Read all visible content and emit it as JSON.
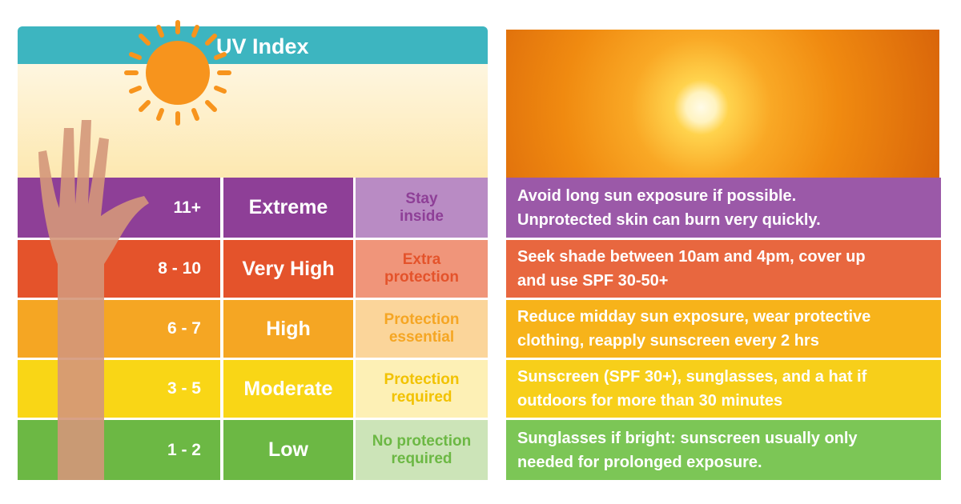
{
  "title": "UV Index",
  "levels": [
    {
      "range": "11+",
      "level": "Extreme",
      "short": [
        "Stay",
        "inside"
      ],
      "long": [
        "Avoid long sun exposure if possible.",
        "Unprotected skin can burn very quickly."
      ]
    },
    {
      "range": "8 - 10",
      "level": "Very High",
      "short": [
        "Extra",
        "protection"
      ],
      "long": [
        "Seek shade between 10am and 4pm, cover up",
        "and use SPF 30-50+"
      ]
    },
    {
      "range": "6 - 7",
      "level": "High",
      "short": [
        "Protection",
        "essential"
      ],
      "long": [
        "Reduce midday sun exposure, wear protective",
        "clothing, reapply sunscreen every 2 hrs"
      ]
    },
    {
      "range": "3 - 5",
      "level": "Moderate",
      "short": [
        "Protection",
        "required"
      ],
      "long": [
        "Sunscreen (SPF 30+), sunglasses, and a hat if",
        "outdoors for more than 30 minutes"
      ]
    },
    {
      "range": "1 - 2",
      "level": "Low",
      "short": [
        "No protection",
        "required"
      ],
      "long": [
        "Sunglasses if bright: sunscreen usually only",
        "needed for prolonged exposure."
      ]
    }
  ]
}
